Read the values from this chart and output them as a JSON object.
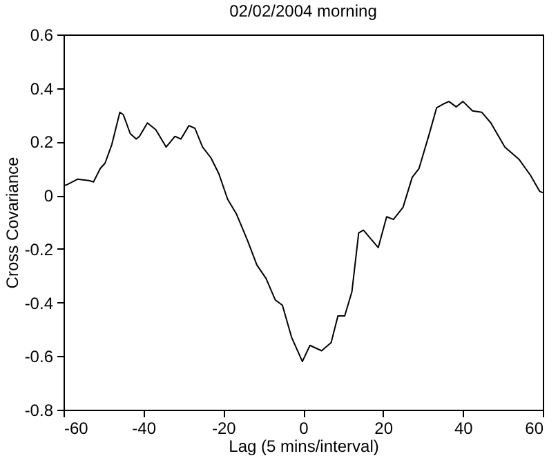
{
  "chart_data": {
    "type": "line",
    "title": "02/02/2004 morning",
    "xlabel": "Lag (5 mins/interval)",
    "ylabel": "Cross Covariance",
    "xlim": [
      -60,
      60
    ],
    "xticks": [
      -60,
      -40,
      -20,
      0,
      20,
      40,
      60
    ],
    "ylim": [
      -0.8,
      0.6
    ],
    "yticks": [
      -0.8,
      -0.6,
      -0.4,
      -0.2,
      0,
      0.2,
      0.4,
      0.6
    ],
    "grid": false,
    "series": [
      {
        "color": "#000000",
        "x": [
          -60,
          -59.1,
          -56.5,
          -53.7,
          -52.5,
          -50.8,
          -49.6,
          -47.9,
          -45.9,
          -45,
          -43.3,
          -41.8,
          -41,
          -39,
          -36.9,
          -34.3,
          -32.1,
          -30.6,
          -28.6,
          -27.1,
          -25.2,
          -23.1,
          -21.1,
          -18.9,
          -16.7,
          -13.9,
          -11.6,
          -9.3,
          -7,
          -5.2,
          -2.9,
          -0.2,
          1.7,
          4.6,
          7,
          8.7,
          10.4,
          12.2,
          13.9,
          15.1,
          16.8,
          18.8,
          20.9,
          22.6,
          25,
          27.3,
          29,
          31.4,
          33.4,
          35,
          36.5,
          38.3,
          40,
          42.4,
          44.7,
          47,
          50.5,
          54,
          56.9,
          59.2,
          60
        ],
        "values": [
          0.035,
          0.04,
          0.06,
          0.055,
          0.05,
          0.1,
          0.12,
          0.19,
          0.31,
          0.3,
          0.23,
          0.21,
          0.22,
          0.27,
          0.245,
          0.18,
          0.22,
          0.21,
          0.26,
          0.25,
          0.18,
          0.14,
          0.08,
          -0.015,
          -0.07,
          -0.17,
          -0.26,
          -0.31,
          -0.39,
          -0.41,
          -0.53,
          -0.62,
          -0.56,
          -0.58,
          -0.55,
          -0.45,
          -0.45,
          -0.36,
          -0.14,
          -0.13,
          -0.16,
          -0.195,
          -0.08,
          -0.09,
          -0.045,
          0.067,
          0.1,
          0.22,
          0.326,
          0.34,
          0.35,
          0.33,
          0.35,
          0.315,
          0.31,
          0.27,
          0.18,
          0.135,
          0.075,
          0.015,
          0.01
        ]
      }
    ]
  }
}
